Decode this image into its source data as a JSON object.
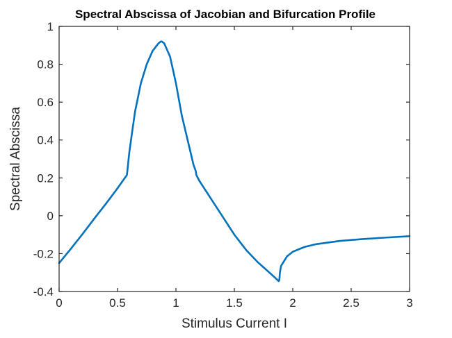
{
  "chart_data": {
    "type": "line",
    "title": "Spectral Abscissa of Jacobian and Bifurcation Profile",
    "xlabel": "Stimulus Current  I",
    "ylabel": "Spectral Abscissa",
    "xlim": [
      0,
      3
    ],
    "ylim": [
      -0.4,
      1
    ],
    "xticks": [
      0,
      0.5,
      1,
      1.5,
      2,
      2.5,
      3
    ],
    "xtick_labels": [
      "0",
      "0.5",
      "1",
      "1.5",
      "2",
      "2.5",
      "3"
    ],
    "yticks": [
      -0.4,
      -0.2,
      0,
      0.2,
      0.4,
      0.6,
      0.8,
      1
    ],
    "ytick_labels": [
      "-0.4",
      "-0.2",
      "0",
      "0.2",
      "0.4",
      "0.6",
      "0.8",
      "1"
    ],
    "grid": false,
    "line_color": "#0072BD",
    "series": [
      {
        "x": [
          0,
          0.1,
          0.2,
          0.3,
          0.4,
          0.5,
          0.58,
          0.585,
          0.6,
          0.62,
          0.65,
          0.7,
          0.75,
          0.8,
          0.85,
          0.87,
          0.88,
          0.9,
          0.95,
          1.0,
          1.05,
          1.1,
          1.15,
          1.17,
          1.175,
          1.2,
          1.3,
          1.4,
          1.5,
          1.6,
          1.7,
          1.8,
          1.88,
          1.885,
          1.89,
          1.9,
          1.95,
          2.0,
          2.1,
          2.2,
          2.4,
          2.6,
          2.8,
          3.0
        ],
        "y": [
          -0.25,
          -0.175,
          -0.097,
          -0.016,
          0.063,
          0.145,
          0.215,
          0.24,
          0.33,
          0.42,
          0.55,
          0.7,
          0.8,
          0.87,
          0.91,
          0.92,
          0.92,
          0.91,
          0.84,
          0.7,
          0.53,
          0.4,
          0.27,
          0.235,
          0.215,
          0.185,
          0.09,
          -0.005,
          -0.1,
          -0.18,
          -0.245,
          -0.3,
          -0.345,
          -0.34,
          -0.3,
          -0.265,
          -0.215,
          -0.19,
          -0.165,
          -0.15,
          -0.133,
          -0.123,
          -0.115,
          -0.108
        ]
      }
    ]
  }
}
